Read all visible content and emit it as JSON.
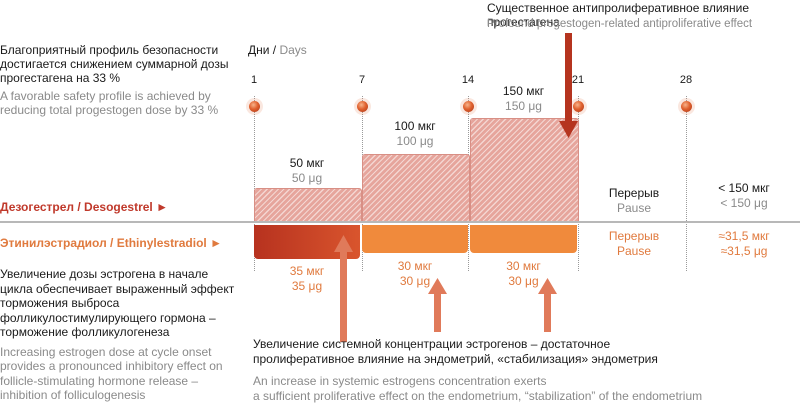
{
  "top_note": {
    "ru": "Существенное антипролиферативное влияние прогестагена",
    "en": "Profound progestogen-related antiproliferative effect"
  },
  "safety_note": {
    "ru_lines": [
      "Благоприятный профиль безопасности",
      "достигается снижением суммарной дозы",
      "прогестагена на 33 %"
    ],
    "en_lines": [
      "A favorable safety profile is achieved by",
      "reducing total progestogen dose by 33 %"
    ]
  },
  "days_header": {
    "ru": "Дни / ",
    "en": "Days"
  },
  "days": [
    "1",
    "7",
    "14",
    "21",
    "28"
  ],
  "desogestrel": {
    "label": "Дезогестрел / Desogestrel ►",
    "doses": [
      {
        "ru": "50 мкг",
        "en": "50 μg"
      },
      {
        "ru": "100 мкг",
        "en": "100 μg"
      },
      {
        "ru": "150 мкг",
        "en": "150 μg"
      }
    ],
    "pause_ru": "Перерыв",
    "pause_en": "Pause",
    "after_ru": "< 150 мкг",
    "after_en": "< 150 μg"
  },
  "ethinylestradiol": {
    "label": "Этинилэстрадиол / Ethinylestradiol ►",
    "doses": [
      {
        "ru": "35 мкг",
        "en": "35 μg"
      },
      {
        "ru": "30 мкг",
        "en": "30 μg"
      },
      {
        "ru": "30 мкг",
        "en": "30 μg"
      }
    ],
    "pause_ru": "Перерыв",
    "pause_en": "Pause",
    "after_ru": "≈31,5 мкг",
    "after_en": "≈31,5 μg"
  },
  "estrogen_note": {
    "ru_lines": [
      "Увеличение дозы эстрогена в начале",
      "цикла обеспечивает выраженный эффект",
      "торможения выброса",
      "фолликулостимулирующего гормона –",
      "торможение фолликулогенеза"
    ],
    "en_lines": [
      "Increasing estrogen dose at cycle onset",
      "provides a pronounced inhibitory effect on",
      "follicle-stimulating hormone release –",
      "inhibition of folliculogenesis"
    ]
  },
  "systemic_note": {
    "ru_lines": [
      "Увеличение системной концентрации эстрогенов – достаточное",
      "пролиферативное влияние на эндометрий, «стабилизация» эндометрия"
    ],
    "en_lines": [
      "An increase in systemic estrogens concentration exerts",
      "a sufficient proliferative effect on the endometrium, “stabilization” of the endometrium"
    ]
  },
  "colors": {
    "red": "#c0392b",
    "orange": "#f08a3c",
    "hatch": "#e6a59c",
    "gray": "#8a8a8a"
  }
}
